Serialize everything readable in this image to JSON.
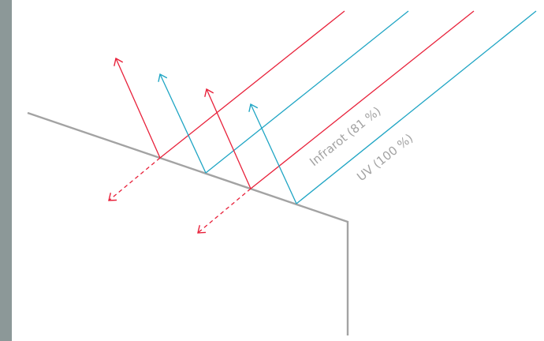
{
  "colors": {
    "infrared": "#e8213a",
    "uv": "#1fa5c4",
    "surface": "#a3a3a3",
    "side_bar": "#8c9898"
  },
  "labels": {
    "infrared": "Infrarot (81 %)",
    "uv": "UV (100 %)"
  }
}
